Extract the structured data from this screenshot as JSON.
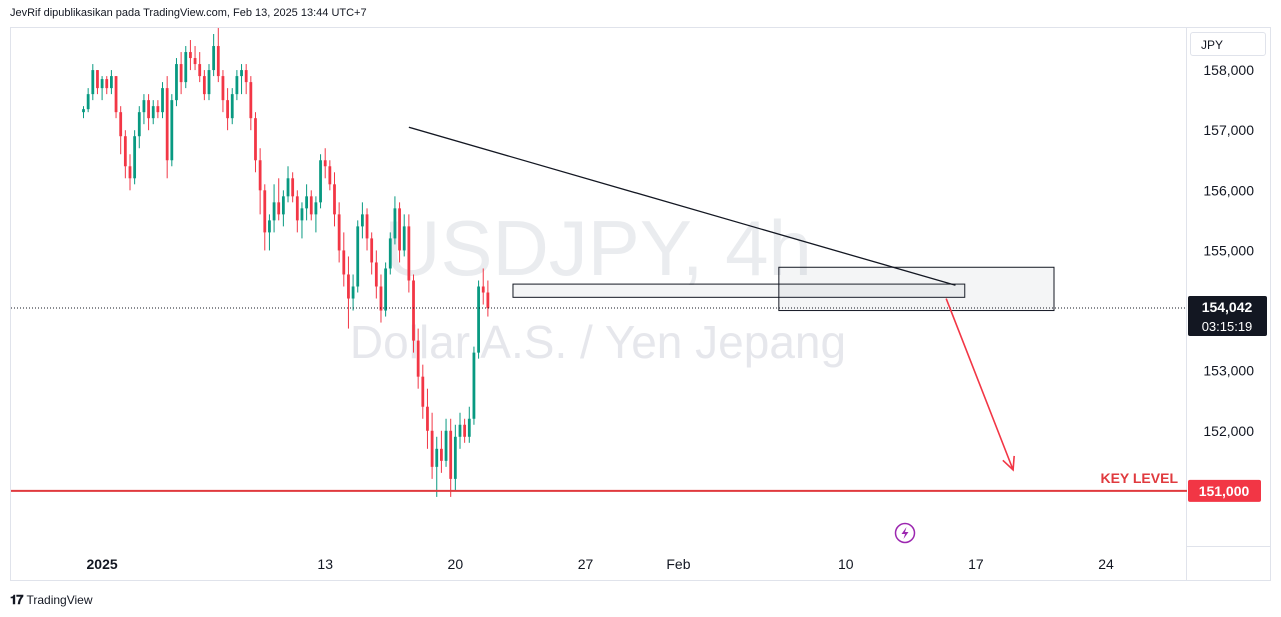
{
  "header": {
    "publisher_text": "JevRif dipublikasikan pada TradingView.com, Feb 13, 2025 13:44 UTC+7"
  },
  "watermark": {
    "symbol": "USDJPY, 4h",
    "description": "Dollar A.S. / Yen Jepang"
  },
  "price_axis": {
    "currency": "JPY"
  },
  "current_price": {
    "value": "154,042",
    "countdown": "03:15:19"
  },
  "key_level": {
    "label": "KEY LEVEL",
    "value": "151,000"
  },
  "footer": {
    "brand": "TradingView"
  },
  "colors": {
    "up": "#089981",
    "down": "#f23645",
    "key_line": "#e03a3e",
    "arrow": "#f23645",
    "trendline": "#131722"
  },
  "chart_data": {
    "type": "candlestick",
    "symbol": "USDJPY",
    "timeframe": "4h",
    "y_axis": {
      "ticks": [
        "158,000",
        "157,000",
        "156,000",
        "155,000",
        "153,000",
        "152,000"
      ],
      "range": [
        150.1,
        158.7
      ]
    },
    "x_axis": {
      "ticks": [
        "2025",
        "13",
        "20",
        "27",
        "Feb",
        "10",
        "17",
        "24"
      ],
      "tick_values": [
        1,
        13,
        20,
        27,
        32,
        41,
        48,
        55
      ],
      "range": [
        -3.9,
        59.3
      ]
    },
    "candles": [
      [
        157.3,
        157.4,
        157.2,
        157.35
      ],
      [
        157.35,
        157.7,
        157.3,
        157.6
      ],
      [
        157.6,
        158.1,
        157.5,
        158.0
      ],
      [
        158.0,
        158.0,
        157.6,
        157.7
      ],
      [
        157.7,
        157.9,
        157.5,
        157.85
      ],
      [
        157.85,
        157.9,
        157.6,
        157.7
      ],
      [
        157.7,
        158.0,
        157.6,
        157.9
      ],
      [
        157.9,
        157.9,
        157.2,
        157.3
      ],
      [
        157.3,
        157.4,
        156.6,
        156.9
      ],
      [
        156.9,
        157.0,
        156.2,
        156.4
      ],
      [
        156.4,
        156.6,
        156.0,
        156.2
      ],
      [
        156.2,
        157.0,
        156.1,
        156.9
      ],
      [
        156.9,
        157.4,
        156.7,
        157.3
      ],
      [
        157.3,
        157.6,
        157.1,
        157.5
      ],
      [
        157.5,
        157.6,
        157.0,
        157.2
      ],
      [
        157.2,
        157.5,
        157.1,
        157.4
      ],
      [
        157.4,
        157.5,
        157.2,
        157.3
      ],
      [
        157.3,
        157.8,
        157.2,
        157.7
      ],
      [
        157.7,
        157.9,
        156.2,
        156.5
      ],
      [
        156.5,
        157.6,
        156.4,
        157.5
      ],
      [
        157.5,
        158.2,
        157.4,
        158.1
      ],
      [
        158.1,
        158.3,
        157.6,
        157.8
      ],
      [
        157.8,
        158.4,
        157.7,
        158.3
      ],
      [
        158.3,
        158.5,
        158.0,
        158.2
      ],
      [
        158.2,
        158.4,
        158.0,
        158.1
      ],
      [
        158.1,
        158.3,
        157.8,
        157.9
      ],
      [
        157.9,
        158.0,
        157.5,
        157.6
      ],
      [
        157.6,
        158.1,
        157.5,
        158.0
      ],
      [
        158.0,
        158.6,
        157.9,
        158.4
      ],
      [
        158.4,
        158.7,
        157.8,
        157.9
      ],
      [
        157.9,
        158.0,
        157.3,
        157.5
      ],
      [
        157.5,
        157.7,
        157.0,
        157.2
      ],
      [
        157.2,
        157.7,
        157.1,
        157.6
      ],
      [
        157.6,
        158.0,
        157.5,
        157.9
      ],
      [
        157.9,
        158.1,
        157.6,
        158.0
      ],
      [
        158.0,
        158.1,
        157.6,
        157.8
      ],
      [
        157.8,
        157.9,
        157.0,
        157.2
      ],
      [
        157.2,
        157.3,
        156.3,
        156.5
      ],
      [
        156.5,
        156.7,
        155.6,
        156.0
      ],
      [
        156.0,
        156.1,
        155.0,
        155.3
      ],
      [
        155.3,
        155.6,
        155.0,
        155.5
      ],
      [
        155.5,
        156.1,
        155.3,
        155.8
      ],
      [
        155.8,
        156.2,
        155.5,
        155.6
      ],
      [
        155.6,
        156.0,
        155.4,
        155.9
      ],
      [
        155.9,
        156.4,
        155.8,
        156.2
      ],
      [
        156.2,
        156.3,
        155.8,
        155.9
      ],
      [
        155.9,
        156.0,
        155.3,
        155.5
      ],
      [
        155.5,
        155.8,
        155.2,
        155.7
      ],
      [
        155.7,
        156.1,
        155.5,
        155.9
      ],
      [
        155.9,
        156.0,
        155.5,
        155.6
      ],
      [
        155.6,
        155.9,
        155.3,
        155.8
      ],
      [
        155.8,
        156.6,
        155.7,
        156.5
      ],
      [
        156.5,
        156.7,
        156.2,
        156.4
      ],
      [
        156.4,
        156.5,
        156.0,
        156.1
      ],
      [
        156.1,
        156.3,
        155.4,
        155.6
      ],
      [
        155.6,
        155.8,
        154.8,
        155.0
      ],
      [
        155.0,
        155.3,
        154.4,
        154.6
      ],
      [
        154.6,
        154.9,
        153.7,
        154.2
      ],
      [
        154.2,
        154.6,
        154.0,
        154.4
      ],
      [
        154.4,
        155.5,
        154.3,
        155.4
      ],
      [
        155.4,
        155.8,
        155.2,
        155.6
      ],
      [
        155.6,
        155.7,
        155.0,
        155.2
      ],
      [
        155.2,
        155.3,
        154.6,
        154.8
      ],
      [
        154.8,
        155.0,
        154.2,
        154.4
      ],
      [
        154.4,
        154.6,
        153.8,
        154.0
      ],
      [
        154.0,
        154.8,
        153.9,
        154.7
      ],
      [
        154.7,
        155.3,
        154.6,
        155.2
      ],
      [
        155.2,
        155.9,
        155.1,
        155.7
      ],
      [
        155.7,
        155.8,
        154.8,
        155.0
      ],
      [
        155.0,
        155.6,
        154.9,
        155.4
      ],
      [
        155.4,
        155.6,
        154.3,
        154.5
      ],
      [
        154.5,
        154.6,
        153.3,
        153.5
      ],
      [
        153.5,
        153.7,
        152.7,
        152.9
      ],
      [
        152.9,
        153.1,
        152.2,
        152.4
      ],
      [
        152.4,
        152.7,
        151.7,
        152.0
      ],
      [
        152.0,
        152.3,
        151.2,
        151.4
      ],
      [
        151.4,
        151.9,
        150.9,
        151.7
      ],
      [
        151.7,
        152.0,
        151.3,
        151.5
      ],
      [
        151.5,
        152.2,
        151.4,
        152.0
      ],
      [
        152.0,
        152.2,
        150.9,
        151.2
      ],
      [
        151.2,
        152.1,
        151.0,
        151.9
      ],
      [
        151.9,
        152.3,
        151.7,
        152.1
      ],
      [
        152.1,
        152.2,
        151.8,
        151.9
      ],
      [
        151.9,
        152.4,
        151.8,
        152.2
      ],
      [
        152.2,
        153.4,
        152.1,
        153.3
      ],
      [
        153.3,
        154.5,
        153.2,
        154.4
      ],
      [
        154.4,
        154.7,
        154.1,
        154.3
      ],
      [
        154.3,
        154.5,
        153.9,
        154.04
      ]
    ],
    "trendline": {
      "from": [
        17.5,
        157.05
      ],
      "to": [
        46.9,
        154.42
      ]
    },
    "zones": [
      {
        "x": [
          23.1,
          47.4
        ],
        "y": [
          154.22,
          154.44
        ]
      },
      {
        "x": [
          37.4,
          52.2
        ],
        "y": [
          154.0,
          154.72
        ]
      }
    ],
    "dotted_line": 154.042,
    "key_level": 151.0,
    "arrow": {
      "from": [
        46.4,
        154.2
      ],
      "to": [
        50.0,
        151.35
      ]
    }
  }
}
